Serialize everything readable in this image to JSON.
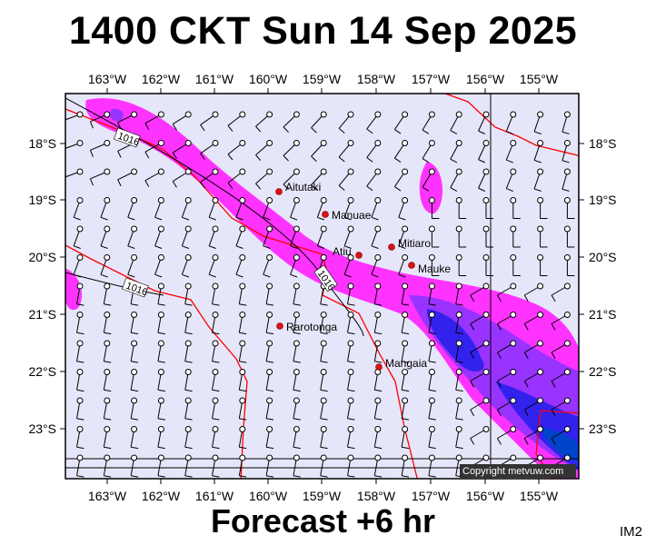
{
  "title": "1400 CKT Sun 14 Sep 2025",
  "subtitle": "Forecast +6 hr",
  "code": "IM2",
  "copyright": "Copyright metvuw.com",
  "lon_labels": [
    "163°W",
    "162°W",
    "161°W",
    "160°W",
    "159°W",
    "158°W",
    "157°W",
    "156°W",
    "155°W"
  ],
  "lat_labels": [
    "18°S",
    "19°S",
    "20°S",
    "21°S",
    "22°S",
    "23°S"
  ],
  "places": [
    {
      "name": "Aitutaki"
    },
    {
      "name": "Manuae"
    },
    {
      "name": "Mitiaro"
    },
    {
      "name": "Atiu"
    },
    {
      "name": "Mauke"
    },
    {
      "name": "Rarotonga"
    },
    {
      "name": "Mangaia"
    }
  ],
  "isobar_labels": [
    "1016",
    "1016",
    "1016"
  ],
  "colors": {
    "background": "#e6e6fa",
    "rain_light": "#ff00ff",
    "rain_med": "#9933ff",
    "rain_heavy": "#2222ee",
    "rain_extreme": "#0044cc",
    "boundary": "#ff0000"
  }
}
